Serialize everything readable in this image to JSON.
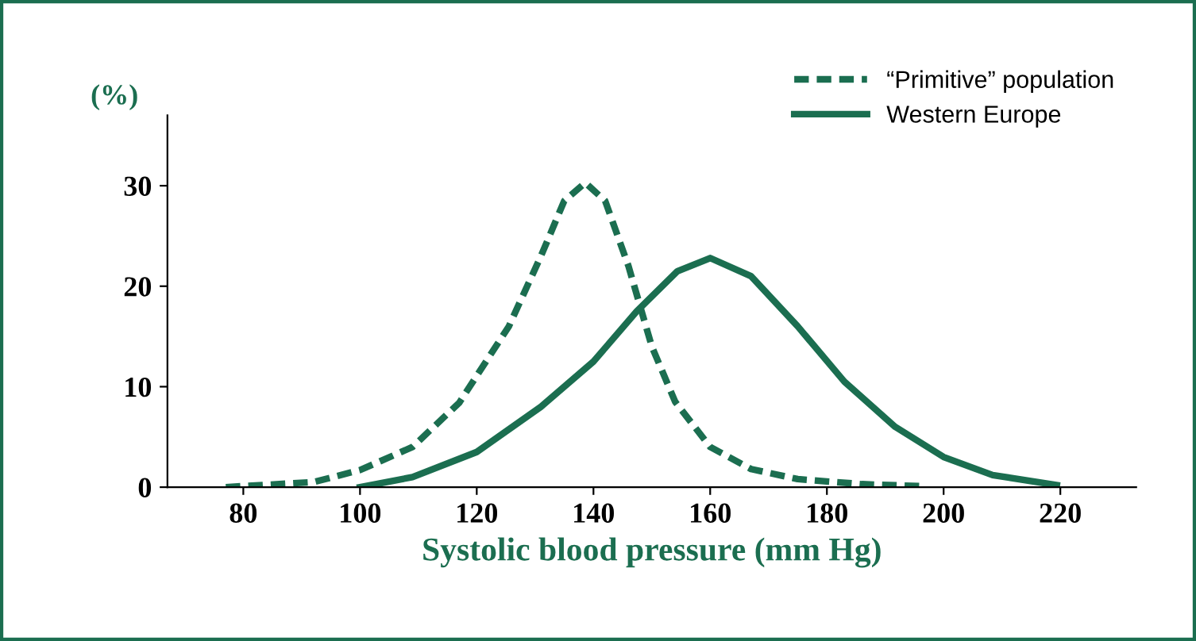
{
  "chart_data": {
    "type": "line",
    "xlabel": "Systolic blood pressure (mm Hg)",
    "ylabel": "(%)",
    "xlim": [
      67,
      233
    ],
    "ylim": [
      0,
      37
    ],
    "xticks": [
      80,
      100,
      120,
      140,
      160,
      180,
      200,
      220
    ],
    "yticks": [
      0,
      10,
      20,
      30
    ],
    "grid": false,
    "legend": "top right",
    "marker": "none",
    "series": [
      {
        "name": "“Primitive” population",
        "color": "#1b6e50",
        "line_style": "dashed",
        "x": [
          77,
          92,
          100,
          109,
          117,
          125.5,
          131,
          135,
          138.6,
          142,
          146,
          150,
          154,
          160,
          167,
          175,
          186,
          196
        ],
        "values": [
          0,
          0.5,
          1.7,
          4,
          8.4,
          16,
          23,
          28.5,
          30.3,
          28.5,
          22,
          14,
          8.5,
          4,
          1.8,
          0.8,
          0.3,
          0.1
        ]
      },
      {
        "name": "Western Europe",
        "color": "#1b6e50",
        "line_style": "solid",
        "x": [
          100,
          109,
          120,
          131,
          140,
          147.4,
          154.4,
          160,
          167,
          175,
          183,
          191.7,
          200,
          208.4,
          219.4
        ],
        "values": [
          0,
          1,
          3.5,
          8,
          12.5,
          17.5,
          21.5,
          22.8,
          21,
          16,
          10.5,
          6,
          3,
          1.2,
          0.2
        ]
      }
    ]
  }
}
